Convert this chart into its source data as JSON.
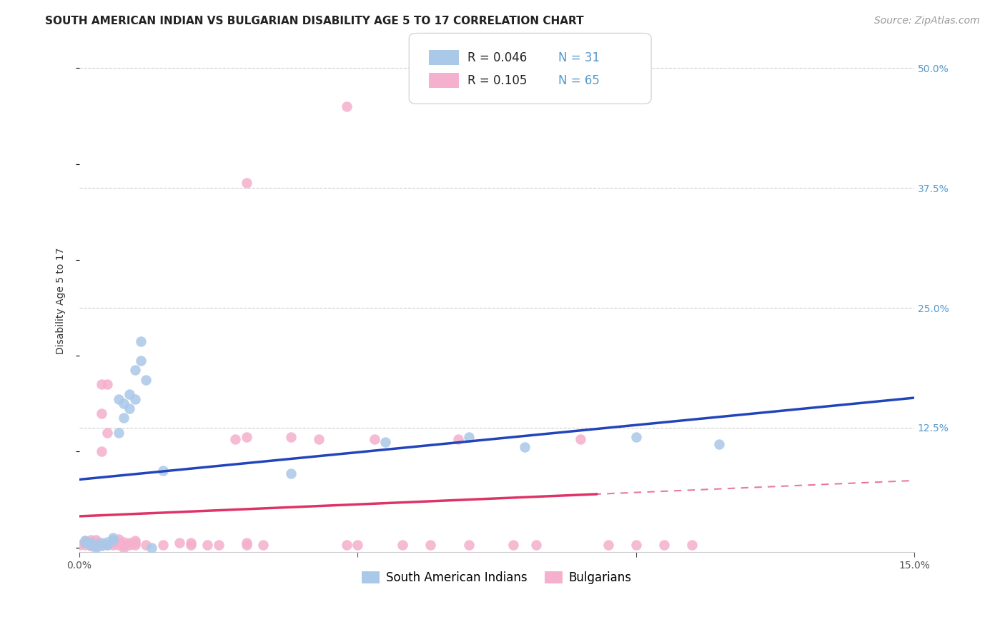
{
  "title": "SOUTH AMERICAN INDIAN VS BULGARIAN DISABILITY AGE 5 TO 17 CORRELATION CHART",
  "source": "Source: ZipAtlas.com",
  "ylabel": "Disability Age 5 to 17",
  "xlim": [
    0.0,
    0.15
  ],
  "ylim": [
    -0.005,
    0.52
  ],
  "blue_R": 0.046,
  "blue_N": 31,
  "pink_R": 0.105,
  "pink_N": 65,
  "blue_color": "#aac8e8",
  "pink_color": "#f4b0cc",
  "blue_line_color": "#2244bb",
  "pink_line_color": "#dd3366",
  "yticks_right": [
    0.0,
    0.125,
    0.25,
    0.375,
    0.5
  ],
  "ytick_labels_right": [
    "",
    "12.5%",
    "25.0%",
    "37.5%",
    "50.0%"
  ],
  "blue_scatter": [
    [
      0.001,
      0.005
    ],
    [
      0.001,
      0.007
    ],
    [
      0.002,
      0.003
    ],
    [
      0.002,
      0.005
    ],
    [
      0.003,
      0.0
    ],
    [
      0.003,
      0.003
    ],
    [
      0.004,
      0.002
    ],
    [
      0.004,
      0.005
    ],
    [
      0.005,
      0.003
    ],
    [
      0.005,
      0.006
    ],
    [
      0.006,
      0.008
    ],
    [
      0.006,
      0.01
    ],
    [
      0.007,
      0.12
    ],
    [
      0.007,
      0.155
    ],
    [
      0.008,
      0.135
    ],
    [
      0.008,
      0.15
    ],
    [
      0.009,
      0.145
    ],
    [
      0.009,
      0.16
    ],
    [
      0.01,
      0.155
    ],
    [
      0.01,
      0.185
    ],
    [
      0.011,
      0.195
    ],
    [
      0.011,
      0.215
    ],
    [
      0.012,
      0.175
    ],
    [
      0.013,
      0.0
    ],
    [
      0.015,
      0.08
    ],
    [
      0.038,
      0.077
    ],
    [
      0.055,
      0.11
    ],
    [
      0.07,
      0.115
    ],
    [
      0.08,
      0.105
    ],
    [
      0.1,
      0.115
    ],
    [
      0.115,
      0.108
    ]
  ],
  "pink_scatter": [
    [
      0.0,
      0.003
    ],
    [
      0.001,
      0.003
    ],
    [
      0.001,
      0.005
    ],
    [
      0.001,
      0.007
    ],
    [
      0.002,
      0.002
    ],
    [
      0.002,
      0.004
    ],
    [
      0.002,
      0.006
    ],
    [
      0.002,
      0.008
    ],
    [
      0.003,
      0.002
    ],
    [
      0.003,
      0.004
    ],
    [
      0.003,
      0.006
    ],
    [
      0.003,
      0.008
    ],
    [
      0.004,
      0.1
    ],
    [
      0.004,
      0.14
    ],
    [
      0.004,
      0.17
    ],
    [
      0.005,
      0.17
    ],
    [
      0.005,
      0.12
    ],
    [
      0.005,
      0.003
    ],
    [
      0.006,
      0.003
    ],
    [
      0.006,
      0.005
    ],
    [
      0.006,
      0.008
    ],
    [
      0.007,
      0.003
    ],
    [
      0.007,
      0.006
    ],
    [
      0.007,
      0.009
    ],
    [
      0.008,
      0.003
    ],
    [
      0.008,
      0.006
    ],
    [
      0.008,
      0.0
    ],
    [
      0.009,
      0.003
    ],
    [
      0.009,
      0.005
    ],
    [
      0.01,
      0.003
    ],
    [
      0.01,
      0.005
    ],
    [
      0.01,
      0.007
    ],
    [
      0.012,
      0.003
    ],
    [
      0.015,
      0.003
    ],
    [
      0.018,
      0.005
    ],
    [
      0.02,
      0.003
    ],
    [
      0.02,
      0.005
    ],
    [
      0.023,
      0.003
    ],
    [
      0.025,
      0.003
    ],
    [
      0.028,
      0.113
    ],
    [
      0.03,
      0.115
    ],
    [
      0.03,
      0.005
    ],
    [
      0.03,
      0.003
    ],
    [
      0.033,
      0.003
    ],
    [
      0.038,
      0.115
    ],
    [
      0.043,
      0.113
    ],
    [
      0.048,
      0.003
    ],
    [
      0.05,
      0.003
    ],
    [
      0.053,
      0.113
    ],
    [
      0.058,
      0.003
    ],
    [
      0.063,
      0.003
    ],
    [
      0.068,
      0.113
    ],
    [
      0.07,
      0.003
    ],
    [
      0.078,
      0.003
    ],
    [
      0.082,
      0.003
    ],
    [
      0.09,
      0.113
    ],
    [
      0.095,
      0.003
    ],
    [
      0.1,
      0.003
    ],
    [
      0.105,
      0.003
    ],
    [
      0.11,
      0.003
    ],
    [
      0.048,
      0.46
    ],
    [
      0.03,
      0.38
    ],
    [
      0.002,
      0.002
    ],
    [
      0.003,
      0.002
    ],
    [
      0.004,
      0.003
    ]
  ],
  "tick_fontsize": 10,
  "legend_fontsize": 12,
  "title_fontsize": 11,
  "source_fontsize": 10
}
